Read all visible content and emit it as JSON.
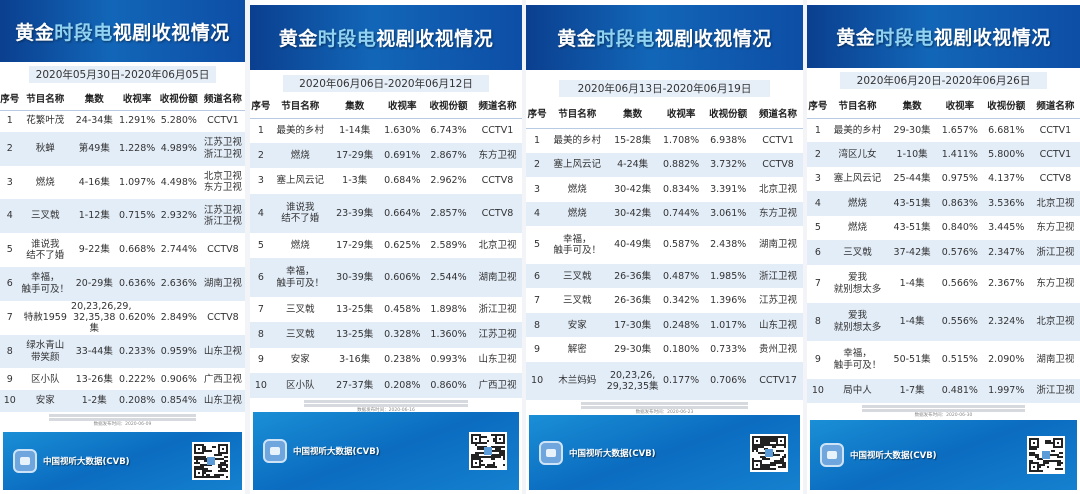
{
  "title": "黄金时段电视剧收视情况",
  "columns": [
    "序号",
    "节目名称",
    "集数",
    "收视率",
    "收视份额",
    "频道名称"
  ],
  "footer": {
    "logo_text": "中国视听大数据(CVB)"
  },
  "colors": {
    "header_blue": "#0b3f8f",
    "accent_light_blue": "#8fd2f2",
    "row_alt": "#e3edf8",
    "footer_blue": "#0b6cc0"
  },
  "panels": [
    {
      "date_range": "2020年05月30日-2020年06月05日",
      "release": "数据发布时间：2020-06-09",
      "rows": [
        [
          "1",
          "花繁叶茂",
          "24-34集",
          "1.291%",
          "5.280%",
          "CCTV1"
        ],
        [
          "2",
          "秋蝉",
          "第49集",
          "1.228%",
          "4.989%",
          "江苏卫视\n浙江卫视"
        ],
        [
          "3",
          "燃烧",
          "4-16集",
          "1.097%",
          "4.498%",
          "北京卫视\n东方卫视"
        ],
        [
          "4",
          "三叉戟",
          "1-12集",
          "0.715%",
          "2.932%",
          "江苏卫视\n浙江卫视"
        ],
        [
          "5",
          "谁说我\n结不了婚",
          "9-22集",
          "0.668%",
          "2.744%",
          "CCTV8"
        ],
        [
          "6",
          "幸福，\n触手可及！",
          "20-29集",
          "0.636%",
          "2.636%",
          "湖南卫视"
        ],
        [
          "7",
          "特赦1959",
          "20,23,26,29,\n32,35,38集",
          "0.620%",
          "2.849%",
          "CCTV8"
        ],
        [
          "8",
          "绿水青山\n带笑颜",
          "33-44集",
          "0.233%",
          "0.959%",
          "山东卫视"
        ],
        [
          "9",
          "区小队",
          "13-26集",
          "0.222%",
          "0.906%",
          "广西卫视"
        ],
        [
          "10",
          "安家",
          "1-2集",
          "0.208%",
          "0.854%",
          "山东卫视"
        ]
      ]
    },
    {
      "date_range": "2020年06月06日-2020年06月12日",
      "release": "数据发布时间：2020-06-16",
      "rows": [
        [
          "1",
          "最美的乡村",
          "1-14集",
          "1.630%",
          "6.743%",
          "CCTV1"
        ],
        [
          "2",
          "燃烧",
          "17-29集",
          "0.691%",
          "2.867%",
          "东方卫视"
        ],
        [
          "3",
          "塞上风云记",
          "1-3集",
          "0.684%",
          "2.962%",
          "CCTV8"
        ],
        [
          "4",
          "谁说我\n结不了婚",
          "23-39集",
          "0.664%",
          "2.857%",
          "CCTV8"
        ],
        [
          "5",
          "燃烧",
          "17-29集",
          "0.625%",
          "2.589%",
          "北京卫视"
        ],
        [
          "6",
          "幸福，\n触手可及！",
          "30-39集",
          "0.606%",
          "2.544%",
          "湖南卫视"
        ],
        [
          "7",
          "三叉戟",
          "13-25集",
          "0.458%",
          "1.898%",
          "浙江卫视"
        ],
        [
          "8",
          "三叉戟",
          "13-25集",
          "0.328%",
          "1.360%",
          "江苏卫视"
        ],
        [
          "9",
          "安家",
          "3-16集",
          "0.238%",
          "0.993%",
          "山东卫视"
        ],
        [
          "10",
          "区小队",
          "27-37集",
          "0.208%",
          "0.860%",
          "广西卫视"
        ]
      ]
    },
    {
      "date_range": "2020年06月13日-2020年06月19日",
      "release": "数据发布时间：2020-06-23",
      "rows": [
        [
          "1",
          "最美的乡村",
          "15-28集",
          "1.708%",
          "6.938%",
          "CCTV1"
        ],
        [
          "2",
          "塞上风云记",
          "4-24集",
          "0.882%",
          "3.732%",
          "CCTV8"
        ],
        [
          "3",
          "燃烧",
          "30-42集",
          "0.834%",
          "3.391%",
          "北京卫视"
        ],
        [
          "4",
          "燃烧",
          "30-42集",
          "0.744%",
          "3.061%",
          "东方卫视"
        ],
        [
          "5",
          "幸福，\n触手可及！",
          "40-49集",
          "0.587%",
          "2.438%",
          "湖南卫视"
        ],
        [
          "6",
          "三叉戟",
          "26-36集",
          "0.487%",
          "1.985%",
          "浙江卫视"
        ],
        [
          "7",
          "三叉戟",
          "26-36集",
          "0.342%",
          "1.396%",
          "江苏卫视"
        ],
        [
          "8",
          "安家",
          "17-30集",
          "0.248%",
          "1.017%",
          "山东卫视"
        ],
        [
          "9",
          "解密",
          "29-30集",
          "0.180%",
          "0.733%",
          "贵州卫视"
        ],
        [
          "10",
          "木兰妈妈",
          "20,23,26,\n29,32,35集",
          "0.177%",
          "0.706%",
          "CCTV17"
        ]
      ]
    },
    {
      "date_range": "2020年06月20日-2020年06月26日",
      "release": "数据发布时间：2020-06-30",
      "rows": [
        [
          "1",
          "最美的乡村",
          "29-30集",
          "1.657%",
          "6.681%",
          "CCTV1"
        ],
        [
          "2",
          "湾区儿女",
          "1-10集",
          "1.411%",
          "5.800%",
          "CCTV1"
        ],
        [
          "3",
          "塞上风云记",
          "25-44集",
          "0.975%",
          "4.137%",
          "CCTV8"
        ],
        [
          "4",
          "燃烧",
          "43-51集",
          "0.863%",
          "3.536%",
          "北京卫视"
        ],
        [
          "5",
          "燃烧",
          "43-51集",
          "0.840%",
          "3.445%",
          "东方卫视"
        ],
        [
          "6",
          "三叉戟",
          "37-42集",
          "0.576%",
          "2.347%",
          "浙江卫视"
        ],
        [
          "7",
          "爱我\n就别想太多",
          "1-4集",
          "0.566%",
          "2.367%",
          "东方卫视"
        ],
        [
          "8",
          "爱我\n就别想太多",
          "1-4集",
          "0.556%",
          "2.324%",
          "北京卫视"
        ],
        [
          "9",
          "幸福，\n触手可及！",
          "50-51集",
          "0.515%",
          "2.090%",
          "湖南卫视"
        ],
        [
          "10",
          "局中人",
          "1-7集",
          "0.481%",
          "1.997%",
          "浙江卫视"
        ]
      ]
    }
  ]
}
